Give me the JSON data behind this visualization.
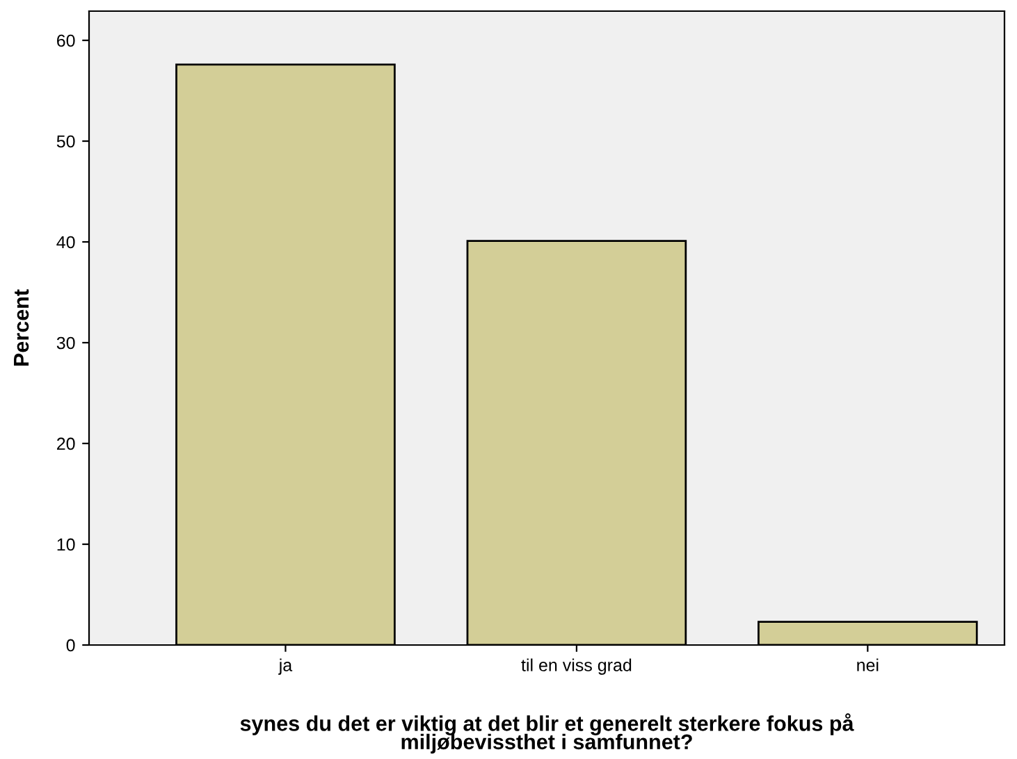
{
  "chart_data": {
    "type": "bar",
    "xlabel": "synes du det er viktig at det blir et generelt sterkere fokus på\nmiljøbevissthet i samfunnet?",
    "ylabel": "Percent",
    "categories": [
      "ja",
      "til en viss grad",
      "nei"
    ],
    "values": [
      57.6,
      40.1,
      2.3
    ],
    "color": "#d3ce97",
    "ylim": [
      0,
      62.9
    ],
    "yticks": [
      0,
      10,
      20,
      30,
      40,
      50,
      60
    ],
    "grid": false,
    "legend": false
  }
}
